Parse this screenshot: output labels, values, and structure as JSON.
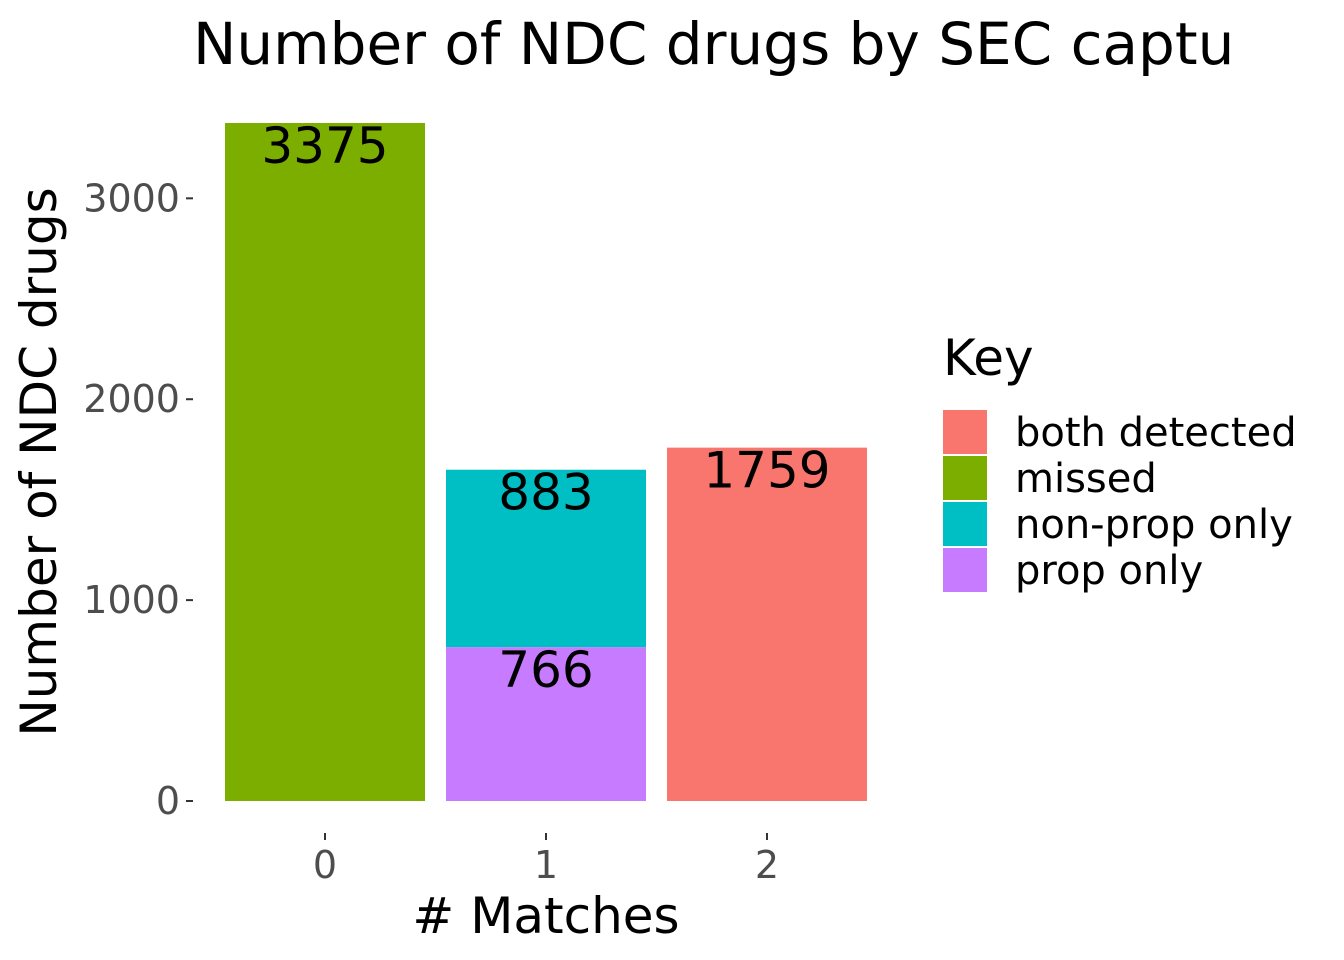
{
  "chart_data": {
    "type": "bar",
    "stacked": true,
    "title": "Number of NDC drugs by SEC captu",
    "xlabel": "# Matches",
    "ylabel": "Number of NDC drugs",
    "categories": [
      "0",
      "1",
      "2"
    ],
    "ylim": [
      0,
      3375
    ],
    "yticks": [
      0,
      1000,
      2000,
      3000
    ],
    "ytick_labels": [
      "0",
      "1000",
      "2000",
      "3000"
    ],
    "grid": false,
    "legend": {
      "title": "Key",
      "placement": "right",
      "entries": [
        "both detected",
        "missed",
        "non-prop only",
        "prop only"
      ]
    },
    "series": [
      {
        "name": "both detected",
        "color": "#F8766D",
        "values": [
          0,
          0,
          1759
        ]
      },
      {
        "name": "missed",
        "color": "#7CAE00",
        "values": [
          3375,
          0,
          0
        ]
      },
      {
        "name": "non-prop only",
        "color": "#00BFC4",
        "values": [
          0,
          883,
          0
        ]
      },
      {
        "name": "prop only",
        "color": "#C77CFF",
        "values": [
          0,
          766,
          0
        ]
      }
    ],
    "stack_order": [
      "prop only",
      "non-prop only",
      "missed",
      "both detected"
    ],
    "data_labels": [
      {
        "category": "0",
        "series": "missed",
        "text": "3375"
      },
      {
        "category": "1",
        "series": "non-prop only",
        "text": "883"
      },
      {
        "category": "1",
        "series": "prop only",
        "text": "766"
      },
      {
        "category": "2",
        "series": "both detected",
        "text": "1759"
      }
    ]
  }
}
